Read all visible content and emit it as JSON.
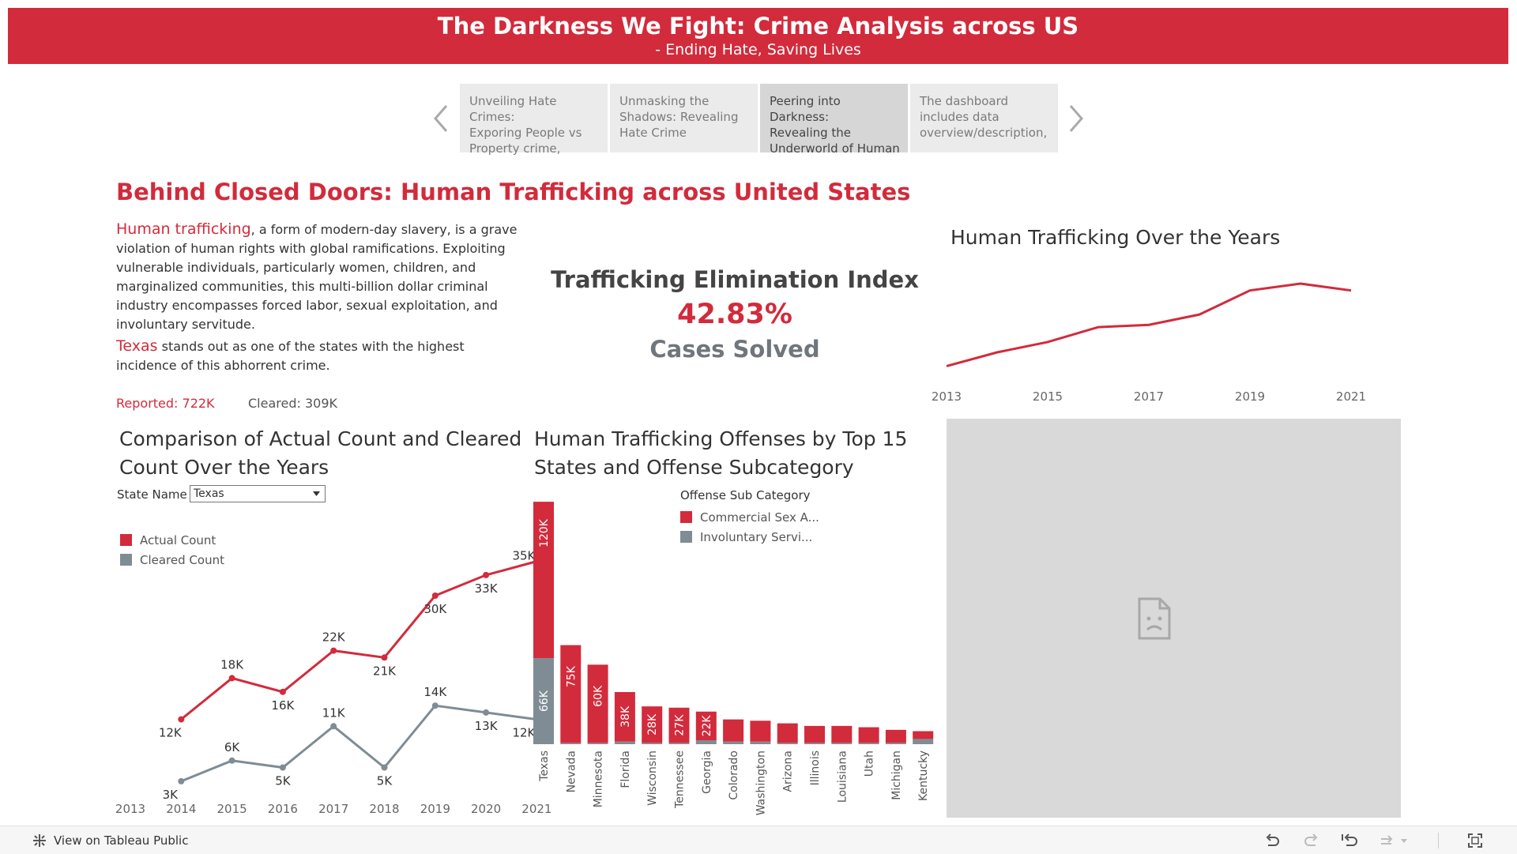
{
  "header": {
    "title": "The Darkness We Fight: Crime Analysis across US",
    "subtitle": "- Ending Hate, Saving Lives"
  },
  "story_nav": {
    "items": [
      {
        "lines": [
          "Unveiling Hate Crimes:",
          "Exporing People vs",
          "Property crime,"
        ]
      },
      {
        "lines": [
          "Unmasking the",
          "Shadows: Revealing",
          "Hate Crime"
        ]
      },
      {
        "lines": [
          "Peering into Darkness:",
          "Revealing the",
          "Underworld of Human"
        ]
      },
      {
        "lines": [
          "The dashboard",
          "includes data",
          "overview/description,"
        ]
      }
    ]
  },
  "main": {
    "heading": "Behind Closed Doors: Human Trafficking across United States",
    "intro": {
      "highlight1": "Human trafficking",
      "text1": ", a form of modern-day slavery, is a grave violation of human rights with global ramifications. Exploiting vulnerable individuals, particularly women, children, and marginalized communities, this multi-billion dollar criminal industry encompasses forced labor, sexual exploitation, and involuntary servitude.",
      "highlight2": "Texas",
      "text2": " stands out as one of the states with the highest incidence of this abhorrent crime."
    },
    "reported": "Reported: 722K",
    "cleared": "Cleared: 309K"
  },
  "kpi": {
    "title": "Trafficking Elimination Index",
    "value": "42.83%",
    "caption": "Cases Solved"
  },
  "colors": {
    "red": "#d22b3c",
    "gray": "#7f8c94"
  },
  "charts": {
    "over_years_title": "Human Trafficking Over the Years",
    "comparison_title_line1": "Comparison of Actual Count and Cleared",
    "comparison_title_line2": "Count Over the Years",
    "state_filter_label": "State Name",
    "state_filter_value": "Texas",
    "bar_title_line1": "Human Trafficking Offenses by Top 15",
    "bar_title_line2": "States and Offense Subcategory",
    "bar_legend_title": "Offense Sub Category",
    "bar_legend_items": [
      "Commercial Sex A...",
      "Involuntary Servi..."
    ],
    "comparison_legend": [
      "Actual Count",
      "Cleared Count"
    ]
  },
  "chart_data": [
    {
      "type": "line",
      "title": "Human Trafficking Over the Years",
      "x_tick_labels": [
        "2013",
        "2015",
        "2017",
        "2019",
        "2021"
      ],
      "x": [
        2013,
        2014,
        2015,
        2016,
        2017,
        2018,
        2019,
        2020,
        2021
      ],
      "series": [
        {
          "values": [
            8,
            20,
            29,
            42,
            44,
            53,
            74,
            80,
            74
          ]
        }
      ],
      "ylim": [
        0,
        100
      ]
    },
    {
      "type": "line",
      "title": "Comparison of Actual Count and Cleared Count Over the Years",
      "x_tick_labels": [
        "2013",
        "2014",
        "2015",
        "2016",
        "2017",
        "2018",
        "2019",
        "2020",
        "2021"
      ],
      "x": [
        2014,
        2015,
        2016,
        2017,
        2018,
        2019,
        2020,
        2021
      ],
      "series": [
        {
          "name": "Actual Count",
          "values": [
            12,
            18,
            16,
            22,
            21,
            30,
            33,
            35
          ],
          "labels": [
            "12K",
            "18K",
            "16K",
            "22K",
            "21K",
            "30K",
            "33K",
            "35K"
          ]
        },
        {
          "name": "Cleared Count",
          "values": [
            3,
            6,
            5,
            11,
            5,
            14,
            13,
            12
          ],
          "labels": [
            "3K",
            "6K",
            "5K",
            "11K",
            "5K",
            "14K",
            "13K",
            "12K"
          ]
        }
      ]
    },
    {
      "type": "bar",
      "stacked": true,
      "title": "Human Trafficking Offenses by Top 15 States and Offense Subcategory",
      "categories": [
        "Texas",
        "Nevada",
        "Minnesota",
        "Florida",
        "Wisconsin",
        "Tennessee",
        "Georgia",
        "Colorado",
        "Washington",
        "Arizona",
        "Illinois",
        "Louisiana",
        "Utah",
        "Michigan",
        "Kentucky"
      ],
      "series": [
        {
          "name": "Commercial Sex A...",
          "values": [
            120,
            75,
            60,
            38,
            28,
            27,
            22,
            17,
            16,
            15,
            13,
            13,
            12,
            10,
            6
          ],
          "labels": [
            "120K",
            "75K",
            "60K",
            "38K",
            "28K",
            "27K",
            "22K",
            "",
            "",
            "",
            "",
            "",
            "",
            "",
            ""
          ]
        },
        {
          "name": "Involuntary Servi...",
          "values": [
            66,
            1,
            1,
            2,
            1,
            1,
            3,
            2,
            2,
            1,
            1,
            1,
            1,
            1,
            4
          ],
          "labels": [
            "66K",
            "",
            "",
            "",
            "",
            "",
            "",
            "",
            "",
            "",
            "",
            "",
            "",
            "",
            ""
          ]
        }
      ]
    }
  ],
  "footer": {
    "view_label": "View on Tableau Public"
  }
}
